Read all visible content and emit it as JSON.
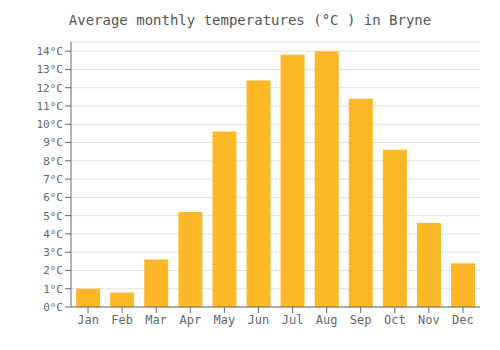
{
  "chart_data": {
    "type": "bar",
    "title": "Average monthly temperatures (°C ) in Bryne",
    "categories": [
      "Jan",
      "Feb",
      "Mar",
      "Apr",
      "May",
      "Jun",
      "Jul",
      "Aug",
      "Sep",
      "Oct",
      "Nov",
      "Dec"
    ],
    "values": [
      1.0,
      0.8,
      2.6,
      5.2,
      9.6,
      12.4,
      13.8,
      14.0,
      11.4,
      8.6,
      4.6,
      2.4
    ],
    "color": "#FDB827",
    "ylim": [
      0,
      14.5
    ],
    "yticks": [
      {
        "value": 0,
        "label": "0°C"
      },
      {
        "value": 1,
        "label": "1°C"
      },
      {
        "value": 2,
        "label": "2°C"
      },
      {
        "value": 3,
        "label": "3°C"
      },
      {
        "value": 4,
        "label": "4°C"
      },
      {
        "value": 5,
        "label": "5°C"
      },
      {
        "value": 6,
        "label": "6°C"
      },
      {
        "value": 7,
        "label": "7°C"
      },
      {
        "value": 8,
        "label": "8°C"
      },
      {
        "value": 9,
        "label": "9°C"
      },
      {
        "value": 10,
        "label": "10°C"
      },
      {
        "value": 11,
        "label": "11°C"
      },
      {
        "value": 12,
        "label": "12°C"
      },
      {
        "value": 13,
        "label": "13°C"
      },
      {
        "value": 14,
        "label": "14°C"
      }
    ],
    "grid": true
  }
}
